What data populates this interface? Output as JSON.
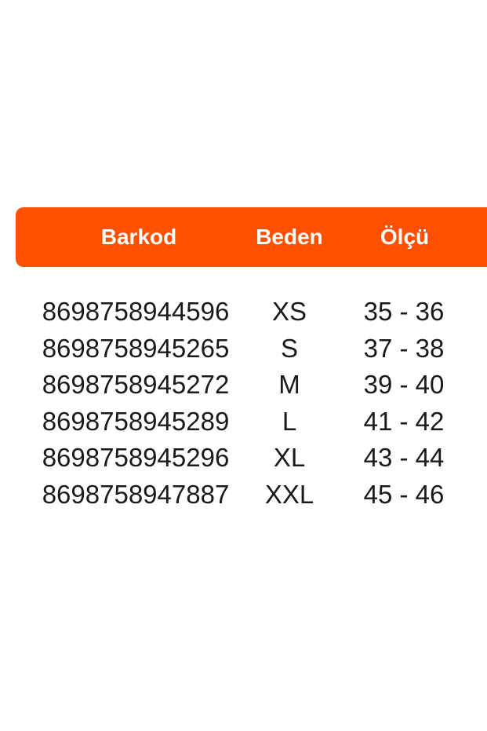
{
  "table": {
    "header_color": "#FF5000",
    "columns": [
      "Barkod",
      "Beden",
      "Ölçü"
    ],
    "rows": [
      [
        "8698758944596",
        "XS",
        "35 - 36"
      ],
      [
        "8698758945265",
        "S",
        "37 - 38"
      ],
      [
        "8698758945272",
        "M",
        "39 - 40"
      ],
      [
        "8698758945289",
        "L",
        "41 - 42"
      ],
      [
        "8698758945296",
        "XL",
        "43 - 44"
      ],
      [
        "8698758947887",
        "XXL",
        "45 - 46"
      ]
    ]
  }
}
